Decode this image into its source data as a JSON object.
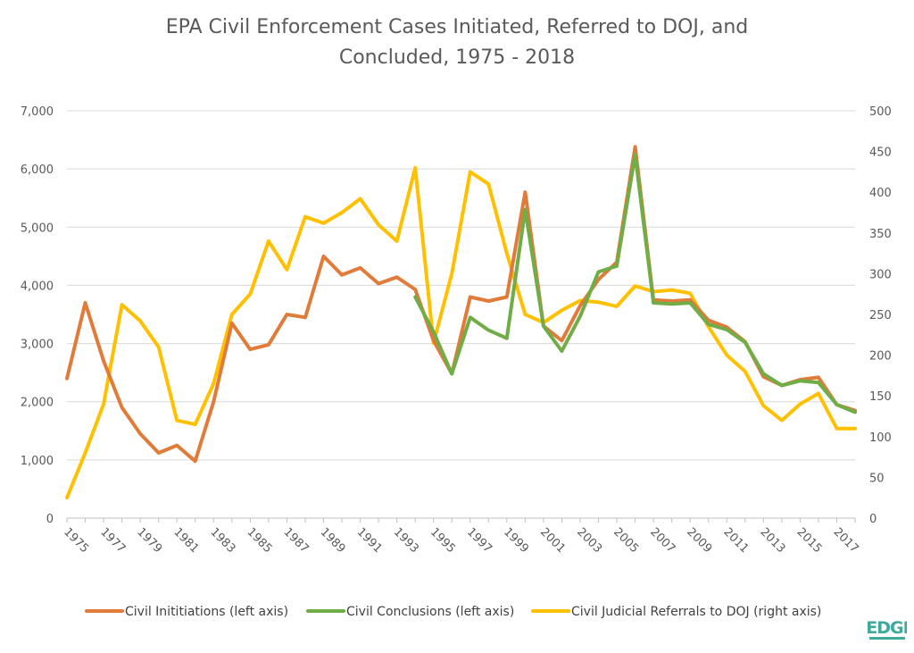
{
  "chart_data": {
    "type": "line",
    "title_line1": "EPA Civil Enforcement Cases Initiated, Referred to DOJ, and",
    "title_line2": "Concluded, 1975 - 2018",
    "x": [
      1975,
      1976,
      1977,
      1978,
      1979,
      1980,
      1981,
      1982,
      1983,
      1984,
      1985,
      1986,
      1987,
      1988,
      1989,
      1990,
      1991,
      1992,
      1993,
      1994,
      1995,
      1996,
      1997,
      1998,
      1999,
      2000,
      2001,
      2002,
      2003,
      2004,
      2005,
      2006,
      2007,
      2008,
      2009,
      2010,
      2011,
      2012,
      2013,
      2014,
      2015,
      2016,
      2017,
      2018
    ],
    "x_tick_labels": [
      "1975",
      "1977",
      "1979",
      "1981",
      "1983",
      "1985",
      "1987",
      "1989",
      "1991",
      "1993",
      "1995",
      "1997",
      "1999",
      "2001",
      "2003",
      "2005",
      "2007",
      "2009",
      "2011",
      "2013",
      "2015",
      "2017"
    ],
    "y_left": {
      "ylim": [
        0,
        7000
      ],
      "ticks": [
        "0",
        "1,000",
        "2,000",
        "3,000",
        "4,000",
        "5,000",
        "6,000",
        "7,000"
      ]
    },
    "y_right": {
      "ylim": [
        0,
        500
      ],
      "ticks": [
        "0",
        "50",
        "100",
        "150",
        "200",
        "250",
        "300",
        "350",
        "400",
        "450",
        "500"
      ]
    },
    "grid": true,
    "legend_position": "bottom",
    "series": [
      {
        "name": "Civil Inititiations (left axis)",
        "axis": "left",
        "color": "#E07B39",
        "values": [
          2400,
          3700,
          2700,
          1900,
          1450,
          1120,
          1250,
          980,
          2000,
          3350,
          2900,
          2980,
          3500,
          3450,
          4500,
          4180,
          4300,
          4030,
          4140,
          3930,
          3050,
          2480,
          3800,
          3730,
          3800,
          5600,
          3300,
          3050,
          3650,
          4100,
          4400,
          6380,
          3750,
          3730,
          3750,
          3400,
          3280,
          3030,
          2430,
          2280,
          2380,
          2420,
          1950,
          1850
        ]
      },
      {
        "name": "Civil Conclusions (left axis)",
        "axis": "left",
        "color": "#70AD47",
        "values": [
          null,
          null,
          null,
          null,
          null,
          null,
          null,
          null,
          null,
          null,
          null,
          null,
          null,
          null,
          null,
          null,
          null,
          null,
          null,
          3800,
          3200,
          2480,
          3450,
          3230,
          3090,
          5300,
          3300,
          2870,
          3470,
          4230,
          4330,
          6250,
          3700,
          3680,
          3700,
          3330,
          3240,
          3020,
          2480,
          2280,
          2360,
          2330,
          1950,
          1820
        ]
      },
      {
        "name": "Civil Judicial Referrals to DOJ (right axis)",
        "axis": "right",
        "color": "#FFC000",
        "values": [
          25,
          80,
          140,
          262,
          242,
          210,
          120,
          115,
          165,
          250,
          275,
          340,
          305,
          370,
          362,
          375,
          392,
          360,
          340,
          430,
          215,
          300,
          425,
          410,
          325,
          250,
          240,
          255,
          267,
          265,
          260,
          285,
          278,
          280,
          276,
          235,
          200,
          180,
          138,
          120,
          140,
          153,
          110,
          110
        ]
      }
    ]
  },
  "logo": {
    "text": "EDGI",
    "color": "#3DAA9B"
  }
}
